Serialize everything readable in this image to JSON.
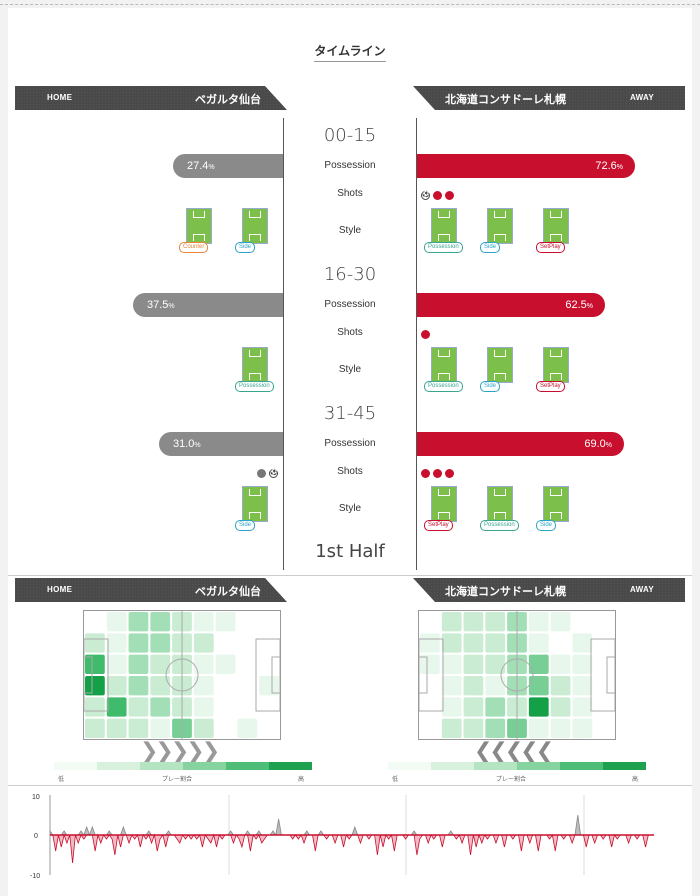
{
  "title": "タイムライン",
  "home": {
    "side": "HOME",
    "name": "ベガルタ仙台"
  },
  "away": {
    "side": "AWAY",
    "name": "北海道コンサドーレ札幌"
  },
  "labels": {
    "possession": "Possession",
    "shots": "Shots",
    "style": "Style",
    "half": "1st Half",
    "pct_unit": "%"
  },
  "periods": [
    {
      "name": "00-15",
      "home_pct": "27.4",
      "away_pct": "72.6",
      "home_poss": 27.4,
      "away_poss": 72.6,
      "home_shots": [],
      "away_shots": [
        "goal",
        "shot",
        "shot"
      ],
      "home_styles": [
        "Counter",
        "Side"
      ],
      "away_styles": [
        "Possession",
        "Side",
        "SetPlay"
      ]
    },
    {
      "name": "16-30",
      "home_pct": "37.5",
      "away_pct": "62.5",
      "home_poss": 37.5,
      "away_poss": 62.5,
      "home_shots": [],
      "away_shots": [
        "shot"
      ],
      "home_styles": [
        "Possession"
      ],
      "away_styles": [
        "Possession",
        "Side",
        "SetPlay"
      ]
    },
    {
      "name": "31-45",
      "home_pct": "31.0",
      "away_pct": "69.0",
      "home_poss": 31.0,
      "away_poss": 69.0,
      "home_shots": [
        "shot",
        "goal"
      ],
      "away_shots": [
        "shot",
        "shot",
        "shot"
      ],
      "home_styles": [
        "Side"
      ],
      "away_styles": [
        "SetPlay",
        "Possession",
        "Side"
      ]
    }
  ],
  "heatmap": {
    "legend_low": "低",
    "legend_mid": "プレー割合",
    "legend_high": "高",
    "home_grid": [
      [
        0,
        1,
        3,
        3,
        2,
        1,
        1,
        0,
        0
      ],
      [
        2,
        1,
        3,
        3,
        2,
        2,
        0,
        0,
        0
      ],
      [
        5,
        1,
        3,
        2,
        2,
        1,
        1,
        0,
        0
      ],
      [
        6,
        2,
        3,
        2,
        2,
        1,
        0,
        0,
        1
      ],
      [
        2,
        5,
        2,
        3,
        2,
        1,
        0,
        0,
        0
      ],
      [
        2,
        2,
        2,
        1,
        4,
        2,
        0,
        1,
        0
      ]
    ],
    "away_grid": [
      [
        0,
        2,
        2,
        2,
        3,
        1,
        1,
        0,
        0
      ],
      [
        1,
        2,
        2,
        2,
        3,
        1,
        0,
        1,
        0
      ],
      [
        1,
        1,
        2,
        2,
        3,
        4,
        1,
        1,
        0
      ],
      [
        0,
        1,
        2,
        1,
        3,
        4,
        2,
        1,
        0
      ],
      [
        0,
        1,
        2,
        3,
        2,
        6,
        2,
        1,
        0
      ],
      [
        0,
        2,
        2,
        3,
        4,
        1,
        1,
        1,
        0
      ]
    ],
    "home_arrows": "❯❯❯❯❯",
    "away_arrows": "❮❮❮❮❮"
  },
  "chart_data": {
    "type": "area",
    "ylim": [
      -10,
      10
    ],
    "yticks": [
      "10",
      "0",
      "-10"
    ],
    "series": [
      {
        "values": [
          1,
          0,
          -4,
          0,
          -3,
          1,
          -2,
          0,
          -7,
          0,
          -2,
          1,
          -1,
          2,
          0,
          2,
          -4,
          0,
          -2,
          0,
          -1,
          1,
          -1,
          -5,
          0,
          -3,
          2,
          0,
          -2,
          0,
          -1,
          0,
          -3,
          0,
          -1,
          1,
          -2,
          0,
          -4,
          -1,
          0,
          -3,
          1,
          0,
          0,
          -1,
          -2,
          0,
          -1,
          0,
          -1,
          0,
          -1,
          0,
          -3,
          0,
          -1,
          -2,
          0,
          -3,
          0,
          -1,
          0,
          0,
          1,
          -2,
          0,
          -1,
          -3,
          0,
          1,
          -4,
          0,
          -1,
          1,
          -2,
          -1,
          0,
          0,
          1,
          0,
          4,
          0,
          0,
          0,
          0,
          -1,
          0,
          -1,
          0,
          -2,
          1,
          0,
          0,
          -4,
          0,
          1,
          0,
          -1,
          0,
          0,
          -2,
          0,
          0,
          -3,
          0,
          -1,
          0,
          2,
          0,
          -2,
          0,
          0,
          -1,
          0,
          0,
          -5,
          0,
          -3,
          0,
          -1,
          0,
          -4,
          0,
          0,
          0,
          -1,
          0,
          0,
          1,
          -5,
          -1,
          0,
          0,
          -2,
          0,
          -1,
          0,
          0,
          -3,
          0,
          0,
          1,
          0,
          -1,
          0,
          -2,
          0,
          0,
          -5,
          0,
          -3,
          0,
          -2,
          0,
          -1,
          0,
          0,
          -2,
          0,
          0,
          -3,
          0,
          0,
          -1,
          0,
          0,
          -4,
          0,
          0,
          -2,
          0,
          0,
          -4,
          0,
          0,
          0,
          -1,
          0,
          -4,
          0,
          0,
          -1,
          0,
          0,
          -2,
          0,
          5,
          0,
          0,
          -3,
          0,
          0,
          -2,
          0,
          0,
          -1,
          0,
          0,
          -3,
          0,
          -1,
          0,
          0,
          0,
          -2,
          0,
          0,
          -1,
          0,
          0,
          -3,
          0,
          0,
          0
        ]
      }
    ]
  }
}
